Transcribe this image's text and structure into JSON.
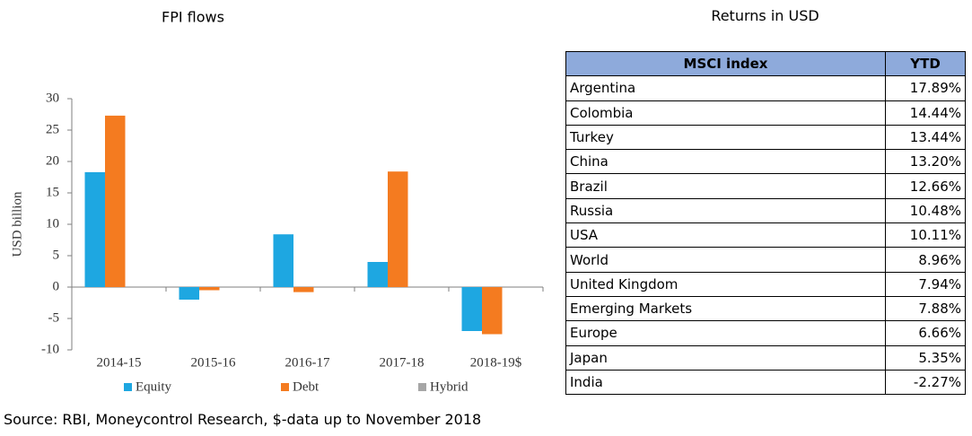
{
  "chart_data": {
    "type": "bar",
    "title": "FPI flows",
    "y_label": "USD billion",
    "categories": [
      "2014-15",
      "2015-16",
      "2016-17",
      "2017-18",
      "2018-19$"
    ],
    "series": [
      {
        "name": "Equity",
        "color": "#1ea7e1",
        "values": [
          18.3,
          -2,
          8.4,
          4,
          -7
        ]
      },
      {
        "name": "Debt",
        "color": "#f47b20",
        "values": [
          27.3,
          -0.5,
          -0.8,
          18.4,
          -7.5
        ]
      },
      {
        "name": "Hybrid",
        "color": "#a6a6a6",
        "values": [
          0,
          0,
          0,
          0,
          0
        ]
      }
    ],
    "ylim": [
      -10,
      30
    ],
    "yticks": [
      -10,
      -5,
      0,
      5,
      10,
      15,
      20,
      25,
      30
    ],
    "grid": false,
    "legend": "bottom"
  },
  "table": {
    "title": "Returns in USD",
    "header": [
      "MSCI index",
      "YTD"
    ],
    "rows": [
      [
        "Argentina",
        "17.89%"
      ],
      [
        "Colombia",
        "14.44%"
      ],
      [
        "Turkey",
        "13.44%"
      ],
      [
        "China",
        "13.20%"
      ],
      [
        "Brazil",
        "12.66%"
      ],
      [
        "Russia",
        "10.48%"
      ],
      [
        "USA",
        "10.11%"
      ],
      [
        "World",
        "8.96%"
      ],
      [
        "United Kingdom",
        "7.94%"
      ],
      [
        "Emerging Markets",
        "7.88%"
      ],
      [
        "Europe",
        "6.66%"
      ],
      [
        "Japan",
        "5.35%"
      ],
      [
        "India",
        "-2.27%"
      ]
    ]
  },
  "source": "Source: RBI, Moneycontrol Research, $-data up to November 2018"
}
